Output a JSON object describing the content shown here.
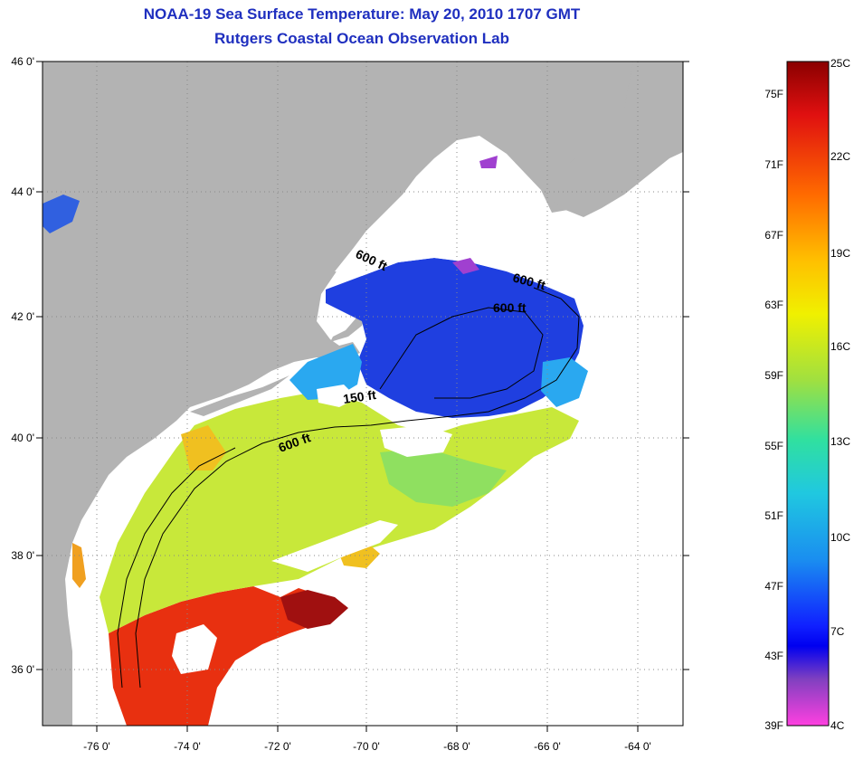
{
  "header": {
    "title_line1": "NOAA-19 Sea Surface Temperature:  May 20, 2010 1707 GMT",
    "title_line2": "Rutgers Coastal Ocean Observation Lab"
  },
  "map": {
    "latitude_labels": [
      "46 0'",
      "44 0'",
      "42 0'",
      "40 0'",
      "38 0'",
      "36 0'"
    ],
    "longitude_labels": [
      "-76 0'",
      "-74 0'",
      "-72 0'",
      "-70 0'",
      "-68 0'",
      "-66 0'",
      "-64 0'"
    ],
    "contour_labels": [
      "600 ft",
      "600 ft",
      "600 ft",
      "150 ft",
      "600 ft"
    ],
    "colors": {
      "land": "#b3b3b3",
      "cloud": "#ffffff",
      "cold": "#1f3fe0",
      "cool": "#2aa8f0",
      "mild": "#c8e83a",
      "warm": "#f0c020",
      "hot": "#e83010",
      "very_hot": "#a01010"
    }
  },
  "colorbar": {
    "celsius_labels": [
      "25C",
      "22C",
      "19C",
      "16C",
      "13C",
      "10C",
      "7C",
      "4C"
    ],
    "fahrenheit_labels": [
      "75F",
      "71F",
      "67F",
      "63F",
      "59F",
      "55F",
      "51F",
      "47F",
      "43F",
      "39F"
    ],
    "gradient_stops": [
      "#8a0000",
      "#e01010",
      "#ff6a00",
      "#ffc000",
      "#f0f000",
      "#a0e040",
      "#30e0a0",
      "#20c8e0",
      "#1a8ef0",
      "#1020ff",
      "#0000f0",
      "#8040c0",
      "#ff40e0"
    ]
  }
}
